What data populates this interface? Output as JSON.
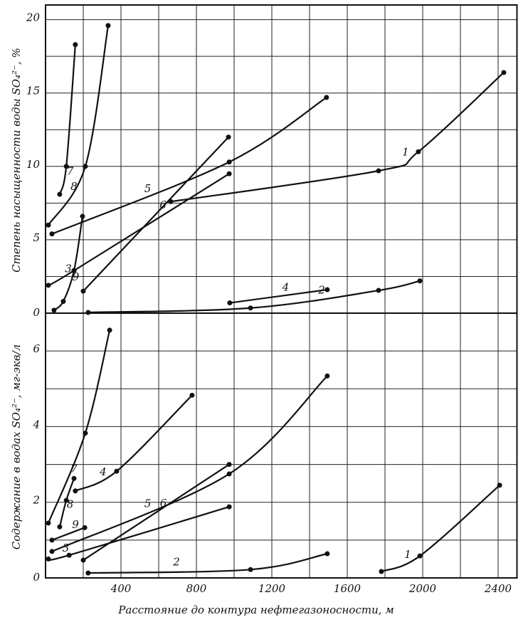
{
  "chart_data": [
    {
      "type": "line",
      "y_label": "Степень насыщенности воды SO₄²⁻, %",
      "xlim": [
        0,
        2500
      ],
      "ylim": [
        0,
        21
      ],
      "yticks": [
        0,
        5,
        10,
        15,
        20
      ],
      "minor_yticks": [
        2.5,
        7.5,
        12.5,
        17.5
      ],
      "grid": true,
      "series": [
        {
          "name": "1",
          "color": "#111111",
          "x": [
            664,
            1766,
            1977,
            2430
          ],
          "values": [
            7.6,
            9.7,
            11,
            16.4
          ]
        },
        {
          "name": "2",
          "color": "#111111",
          "x": [
            226,
            1087,
            1766,
            1985
          ],
          "values": [
            0.05,
            0.35,
            1.55,
            2.2
          ]
        },
        {
          "name": "3",
          "color": "#111111",
          "x": [
            15,
            151,
            974
          ],
          "values": [
            1.9,
            2.9,
            9.5
          ]
        },
        {
          "name": "4",
          "color": "#111111",
          "x": [
            977,
            1494
          ],
          "values": [
            0.7,
            1.6
          ]
        },
        {
          "name": "5",
          "color": "#111111",
          "x": [
            34,
            974,
            1490
          ],
          "values": [
            5.4,
            10.3,
            14.7
          ]
        },
        {
          "name": "6",
          "color": "#111111",
          "x": [
            200,
            970
          ],
          "values": [
            1.5,
            12
          ]
        },
        {
          "name": "7",
          "color": "#111111",
          "x": [
            75,
            110,
            158
          ],
          "values": [
            8.1,
            10,
            18.3
          ]
        },
        {
          "name": "8",
          "color": "#111111",
          "x": [
            15,
            211,
            332
          ],
          "values": [
            6.0,
            10,
            19.6
          ]
        },
        {
          "name": "9",
          "color": "#111111",
          "x": [
            45,
            94,
            151,
            196
          ],
          "values": [
            0.2,
            0.8,
            2.9,
            6.6
          ]
        }
      ]
    },
    {
      "type": "line",
      "x_label": "Расстояние до контура нефтегазоносности, м",
      "y_label": "Содержание в водах SO₄²⁻, мг-экв/л",
      "xlim": [
        0,
        2500
      ],
      "ylim": [
        0,
        7
      ],
      "xticks": [
        400,
        800,
        1200,
        1600,
        2000,
        2400
      ],
      "minor_xticks": [
        200,
        600,
        1000,
        1400,
        1800,
        2200
      ],
      "yticks": [
        0,
        2,
        4,
        6
      ],
      "minor_yticks": [
        1,
        3,
        5
      ],
      "grid": true,
      "series": [
        {
          "name": "1",
          "color": "#111111",
          "x": [
            1781,
            1985,
            2408
          ],
          "values": [
            0.17,
            0.58,
            2.45
          ]
        },
        {
          "name": "2",
          "color": "#111111",
          "x": [
            226,
            1087,
            1494
          ],
          "values": [
            0.13,
            0.22,
            0.64
          ]
        },
        {
          "name": "3",
          "color": "#111111",
          "x": [
            15,
            125,
            974
          ],
          "values": [
            0.5,
            0.6,
            1.88
          ]
        },
        {
          "name": "4",
          "color": "#111111",
          "x": [
            158,
            377,
            777
          ],
          "values": [
            2.3,
            2.82,
            4.83
          ]
        },
        {
          "name": "5",
          "color": "#111111",
          "x": [
            34,
            974,
            1494
          ],
          "values": [
            0.7,
            2.75,
            5.34
          ]
        },
        {
          "name": "6",
          "color": "#111111",
          "x": [
            200,
            974
          ],
          "values": [
            0.47,
            3.0
          ]
        },
        {
          "name": "7",
          "color": "#111111",
          "x": [
            15,
            211,
            340
          ],
          "values": [
            1.45,
            3.83,
            6.55
          ]
        },
        {
          "name": "8",
          "color": "#111111",
          "x": [
            75,
            110,
            151
          ],
          "values": [
            1.35,
            2.05,
            2.63
          ]
        },
        {
          "name": "9",
          "color": "#111111",
          "x": [
            34,
            208
          ],
          "values": [
            1.0,
            1.33
          ]
        }
      ]
    }
  ]
}
